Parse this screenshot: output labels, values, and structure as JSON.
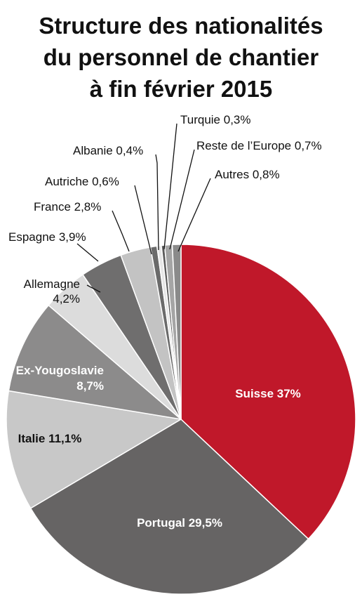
{
  "title_lines": [
    "Structure des nationalités",
    "du personnel de chantier",
    "à fin février 2015"
  ],
  "chart_data": {
    "type": "pie",
    "title": "Structure des nationalités du personnel de chantier à fin février 2015",
    "unit": "%",
    "slices": [
      {
        "name": "Suisse",
        "value": 37,
        "label": [
          "Suisse 37%"
        ],
        "color": "#c0182a",
        "label_color": "#ffffff"
      },
      {
        "name": "Portugal",
        "value": 29.5,
        "label": [
          "Portugal 29,5%"
        ],
        "color": "#666464",
        "label_color": "#ffffff"
      },
      {
        "name": "Italie",
        "value": 11.1,
        "label": [
          "Italie 11,1%"
        ],
        "color": "#c8c8c8",
        "label_color": "#111111"
      },
      {
        "name": "Ex-Yougoslavie",
        "value": 8.7,
        "label": [
          "Ex-Yougoslavie",
          "8,7%"
        ],
        "color": "#8c8b8b",
        "label_color": "#ffffff"
      },
      {
        "name": "Allemagne",
        "value": 4.2,
        "label": [
          "Allemagne",
          "4,2%"
        ],
        "color": "#dcdcdc",
        "label_color": "#111111"
      },
      {
        "name": "Espagne",
        "value": 3.9,
        "label": [
          "Espagne 3,9%"
        ],
        "color": "#6f6e6e",
        "label_color": "#111111"
      },
      {
        "name": "France",
        "value": 2.8,
        "label": [
          "France 2,8%"
        ],
        "color": "#c3c3c3",
        "label_color": "#111111"
      },
      {
        "name": "Autriche",
        "value": 0.6,
        "label": [
          "Autriche 0,6%"
        ],
        "color": "#6a6a6a",
        "label_color": "#111111"
      },
      {
        "name": "Albanie",
        "value": 0.4,
        "label": [
          "Albanie 0,4%"
        ],
        "color": "#e6e6e6",
        "label_color": "#111111"
      },
      {
        "name": "Turquie",
        "value": 0.3,
        "label": [
          "Turquie 0,3%"
        ],
        "color": "#5c5c5c",
        "label_color": "#111111"
      },
      {
        "name": "Reste de l’Europe",
        "value": 0.7,
        "label": [
          "Reste de l’Europe 0,7%"
        ],
        "color": "#a5a5a5",
        "label_color": "#111111"
      },
      {
        "name": "Autres",
        "value": 0.8,
        "label": [
          "Autres 0,8%"
        ],
        "color": "#8a8a8a",
        "label_color": "#111111"
      }
    ]
  }
}
